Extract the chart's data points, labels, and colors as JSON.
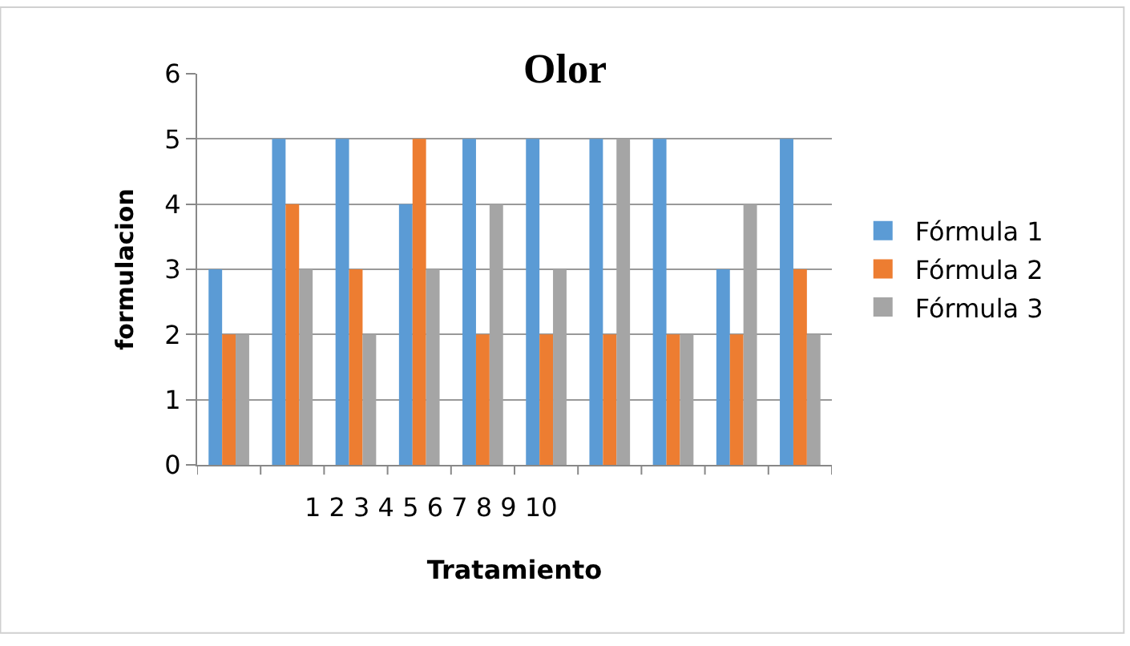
{
  "chart_data": {
    "type": "bar",
    "title": "Olor",
    "xlabel": "Tratamiento",
    "ylabel": "formulacion",
    "categories": [
      null,
      null,
      null,
      null,
      null,
      null,
      null,
      null,
      null,
      null
    ],
    "series": [
      {
        "name": "Fórmula 1",
        "color": "#5b9bd5",
        "values": [
          3,
          5,
          5,
          4,
          5,
          5,
          5,
          5,
          3,
          5
        ]
      },
      {
        "name": "Fórmula 2",
        "color": "#ed7d31",
        "values": [
          2,
          4,
          3,
          5,
          2,
          2,
          2,
          2,
          2,
          3
        ]
      },
      {
        "name": "Fórmula 3",
        "color": "#a5a5a5",
        "values": [
          2,
          3,
          2,
          3,
          4,
          3,
          5,
          2,
          4,
          2
        ]
      }
    ],
    "ylim": [
      0,
      6
    ],
    "yticks": [
      0,
      1,
      2,
      3,
      4,
      5,
      6
    ],
    "grid": "y",
    "legend": "right",
    "annotations": [
      "1 2 3 4 5 6 7 8 9 10"
    ]
  }
}
